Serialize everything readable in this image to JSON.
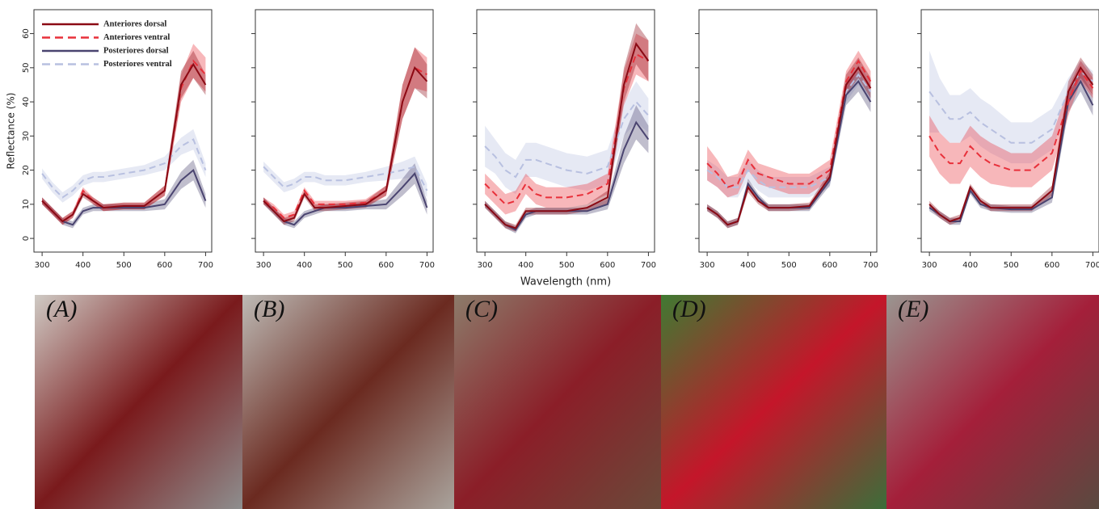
{
  "chart_data": [
    {
      "type": "line",
      "y_label": "Reflectance (%)",
      "x": [
        300,
        325,
        350,
        375,
        400,
        425,
        450,
        500,
        550,
        600,
        640,
        670,
        700
      ],
      "xlim": [
        280,
        715
      ],
      "ylim": [
        -4,
        67
      ],
      "xticks": [
        300,
        400,
        500,
        600,
        700
      ],
      "yticks": [
        0,
        10,
        20,
        30,
        40,
        50,
        60
      ],
      "series": [
        {
          "name": "Anteriores dorsal",
          "color": "#8b0a14",
          "dash": false,
          "values": [
            11,
            8,
            5,
            7,
            13,
            11,
            9,
            9.5,
            9.5,
            14,
            45,
            51,
            45
          ],
          "error": [
            1,
            1,
            1,
            1,
            1,
            1,
            1,
            1,
            1,
            1.5,
            4,
            4,
            3
          ]
        },
        {
          "name": "Anteriores ventral",
          "color": "#e8303a",
          "dash": true,
          "values": [
            11,
            8,
            5,
            7,
            14,
            11,
            9,
            9.5,
            9.5,
            14,
            44,
            52,
            48
          ],
          "error": [
            1,
            1,
            1,
            1,
            1,
            1,
            1,
            1,
            1,
            1.5,
            4,
            5,
            5
          ]
        },
        {
          "name": "Posteriores dorsal",
          "color": "#4a4470",
          "dash": false,
          "values": [
            11,
            8,
            5,
            4,
            8,
            9,
            9,
            9,
            9,
            10,
            17,
            20,
            11
          ],
          "error": [
            1,
            1,
            1,
            1,
            1,
            1,
            1,
            1,
            1,
            1.5,
            2.5,
            3,
            2
          ]
        },
        {
          "name": "Posteriores ventral",
          "color": "#b8c0e0",
          "dash": true,
          "values": [
            19,
            15,
            12,
            14,
            17,
            18,
            18,
            19,
            20,
            22,
            27,
            29,
            20
          ],
          "error": [
            1.5,
            1.5,
            1.5,
            1.5,
            1.5,
            1.5,
            1.5,
            1.5,
            1.5,
            2,
            2.5,
            3,
            2
          ]
        }
      ]
    },
    {
      "type": "line",
      "x": [
        300,
        325,
        350,
        375,
        400,
        425,
        450,
        500,
        550,
        600,
        640,
        670,
        700
      ],
      "xlim": [
        280,
        715
      ],
      "ylim": [
        -4,
        67
      ],
      "xticks": [
        300,
        400,
        500,
        600,
        700
      ],
      "yticks": [
        0,
        10,
        20,
        30,
        40,
        50,
        60
      ],
      "series": [
        {
          "color": "#8b0a14",
          "dash": false,
          "values": [
            11,
            8,
            5,
            6,
            13,
            9,
            9,
            9.5,
            10,
            14,
            40,
            50,
            46
          ],
          "error": [
            1,
            1,
            1,
            1,
            1,
            1,
            1,
            1,
            1,
            1.5,
            5,
            6,
            5
          ]
        },
        {
          "color": "#e8303a",
          "dash": true,
          "values": [
            11,
            9,
            6,
            7,
            14,
            10,
            10,
            10,
            10.5,
            14,
            40,
            50,
            48
          ],
          "error": [
            1,
            1,
            1,
            1,
            1,
            1,
            1,
            1,
            1,
            1.5,
            5,
            6,
            5
          ]
        },
        {
          "color": "#4a4470",
          "dash": false,
          "values": [
            11,
            8,
            5,
            4,
            7,
            8,
            9,
            9,
            9.5,
            10,
            15,
            19,
            9
          ],
          "error": [
            1,
            1,
            1,
            1,
            1,
            1,
            1,
            1,
            1,
            1.5,
            2.5,
            3,
            2
          ]
        },
        {
          "color": "#b8c0e0",
          "dash": true,
          "values": [
            21,
            18,
            15,
            16,
            18,
            18,
            17,
            17,
            18,
            19,
            20,
            21,
            14
          ],
          "error": [
            1.5,
            1.5,
            1.5,
            1.5,
            1.5,
            1.5,
            1.5,
            1.5,
            1.5,
            2,
            2.5,
            3,
            2
          ]
        }
      ]
    },
    {
      "type": "line",
      "x_label": "Wavelength (nm)",
      "x": [
        300,
        325,
        350,
        375,
        400,
        425,
        450,
        500,
        550,
        600,
        640,
        670,
        700
      ],
      "xlim": [
        280,
        715
      ],
      "ylim": [
        -4,
        67
      ],
      "xticks": [
        300,
        400,
        500,
        600,
        700
      ],
      "yticks": [
        0,
        10,
        20,
        30,
        40,
        50,
        60
      ],
      "series": [
        {
          "color": "#8b0a14",
          "dash": false,
          "values": [
            10,
            7,
            4,
            3,
            8,
            8,
            8,
            8,
            9,
            12,
            45,
            57,
            52
          ],
          "error": [
            1,
            1,
            1,
            1,
            1,
            1,
            1,
            1,
            1,
            2,
            5,
            6,
            6
          ]
        },
        {
          "color": "#e8303a",
          "dash": true,
          "values": [
            16,
            13,
            10,
            11,
            16,
            13,
            12,
            12,
            13,
            16,
            44,
            54,
            52
          ],
          "error": [
            3,
            3,
            3,
            3,
            3,
            3,
            3,
            3,
            3,
            3,
            5,
            6,
            6
          ]
        },
        {
          "color": "#4a4470",
          "dash": false,
          "values": [
            10,
            7,
            4,
            2.5,
            7,
            8,
            8,
            8,
            8,
            10,
            26,
            34,
            29
          ],
          "error": [
            1,
            1,
            1,
            1,
            1,
            1,
            1,
            1,
            1,
            1.5,
            4,
            5,
            4
          ]
        },
        {
          "color": "#b8c0e0",
          "dash": true,
          "values": [
            27,
            24,
            20,
            18,
            23,
            23,
            22,
            20,
            19,
            21,
            35,
            40,
            36
          ],
          "error": [
            6,
            5,
            5,
            5,
            5,
            5,
            5,
            5,
            5,
            5,
            5,
            6,
            5
          ]
        }
      ]
    },
    {
      "type": "line",
      "x": [
        300,
        325,
        350,
        375,
        400,
        425,
        450,
        500,
        550,
        600,
        640,
        670,
        700
      ],
      "xlim": [
        280,
        715
      ],
      "ylim": [
        -4,
        67
      ],
      "xticks": [
        300,
        400,
        500,
        600,
        700
      ],
      "yticks": [
        0,
        10,
        20,
        30,
        40,
        50,
        60
      ],
      "series": [
        {
          "color": "#8b0a14",
          "dash": false,
          "values": [
            9,
            7,
            4,
            5,
            15,
            11,
            9,
            9,
            9.5,
            18,
            45,
            50,
            44
          ],
          "error": [
            1,
            1,
            1,
            1,
            1.5,
            1,
            1,
            1,
            1,
            1.5,
            3,
            3,
            3
          ]
        },
        {
          "color": "#e8303a",
          "dash": true,
          "values": [
            22,
            19,
            15,
            16,
            23,
            19,
            18,
            16,
            16,
            20,
            46,
            52,
            46
          ],
          "error": [
            5,
            4,
            3,
            3,
            3,
            3,
            3,
            3,
            3,
            3,
            3,
            3,
            3
          ]
        },
        {
          "color": "#4a4470",
          "dash": false,
          "values": [
            9,
            7,
            4,
            5,
            16,
            12,
            9,
            9,
            9,
            17,
            42,
            46,
            40
          ],
          "error": [
            1,
            1,
            1,
            1,
            1.5,
            1,
            1,
            1,
            1,
            1.5,
            3,
            3,
            3
          ]
        },
        {
          "color": "#b8c0e0",
          "dash": true,
          "values": [
            20,
            18,
            15,
            15,
            20,
            17,
            15,
            15,
            15,
            18,
            43,
            48,
            43
          ],
          "error": [
            3,
            3,
            3,
            3,
            3,
            3,
            3,
            3,
            3,
            3,
            3,
            3,
            3
          ]
        }
      ]
    },
    {
      "type": "line",
      "x": [
        300,
        325,
        350,
        375,
        400,
        425,
        450,
        500,
        550,
        600,
        640,
        670,
        700
      ],
      "xlim": [
        280,
        715
      ],
      "ylim": [
        -4,
        67
      ],
      "xticks": [
        300,
        400,
        500,
        600,
        700
      ],
      "yticks": [
        0,
        10,
        20,
        30,
        40,
        50,
        60
      ],
      "series": [
        {
          "color": "#8b0a14",
          "dash": false,
          "values": [
            10,
            7,
            5,
            6,
            15,
            11,
            9,
            9,
            9,
            14,
            43,
            50,
            45
          ],
          "error": [
            1,
            1,
            1,
            1,
            1,
            1,
            1,
            1,
            1,
            1.5,
            3,
            3,
            3
          ]
        },
        {
          "color": "#e8303a",
          "dash": true,
          "values": [
            30,
            25,
            22,
            22,
            27,
            24,
            22,
            20,
            20,
            25,
            40,
            49,
            44
          ],
          "error": [
            6,
            6,
            6,
            6,
            6,
            6,
            6,
            5,
            5,
            5,
            4,
            3,
            3
          ]
        },
        {
          "color": "#4a4470",
          "dash": false,
          "values": [
            9,
            7,
            5,
            5,
            14,
            10,
            9,
            8.5,
            8.5,
            12,
            40,
            46,
            39
          ],
          "error": [
            1,
            1,
            1,
            1,
            1,
            1,
            1,
            1,
            1,
            1.5,
            3,
            3,
            3
          ]
        },
        {
          "color": "#b8c0e0",
          "dash": true,
          "values": [
            43,
            39,
            35,
            35,
            37,
            34,
            32,
            28,
            28,
            32,
            43,
            49,
            46
          ],
          "error": [
            12,
            8,
            7,
            7,
            7,
            7,
            7,
            6,
            6,
            6,
            4,
            3,
            3
          ]
        }
      ]
    }
  ],
  "photos": [
    "(A)",
    "(B)",
    "(C)",
    "(D)",
    "(E)"
  ]
}
